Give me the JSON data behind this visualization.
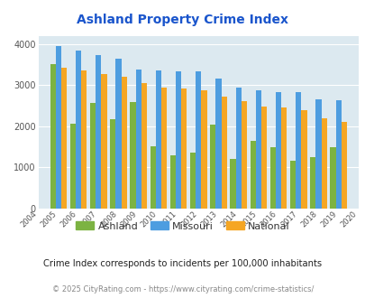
{
  "title": "Ashland Property Crime Index",
  "years": [
    2004,
    2005,
    2006,
    2007,
    2008,
    2009,
    2010,
    2011,
    2012,
    2013,
    2014,
    2015,
    2016,
    2017,
    2018,
    2019,
    2020
  ],
  "ashland": [
    null,
    3520,
    2070,
    2560,
    2180,
    2590,
    1520,
    1300,
    1350,
    2040,
    1200,
    1650,
    1500,
    1160,
    1260,
    1500,
    null
  ],
  "missouri": [
    null,
    3960,
    3840,
    3730,
    3650,
    3390,
    3360,
    3340,
    3340,
    3150,
    2930,
    2870,
    2820,
    2840,
    2650,
    2640,
    null
  ],
  "national": [
    null,
    3430,
    3360,
    3270,
    3200,
    3040,
    2950,
    2920,
    2870,
    2730,
    2610,
    2490,
    2450,
    2390,
    2190,
    2100,
    null
  ],
  "colors": {
    "ashland": "#7cb342",
    "missouri": "#4d9de0",
    "national": "#f5a623"
  },
  "ylim": [
    0,
    4200
  ],
  "yticks": [
    0,
    1000,
    2000,
    3000,
    4000
  ],
  "plot_bg": "#dce9f0",
  "subtitle": "Crime Index corresponds to incidents per 100,000 inhabitants",
  "footer": "© 2025 CityRating.com - https://www.cityrating.com/crime-statistics/",
  "title_color": "#1a55cc",
  "subtitle_color": "#222222",
  "footer_color": "#888888",
  "legend_labels": [
    "Ashland",
    "Missouri",
    "National"
  ],
  "all_years": [
    2004,
    2005,
    2006,
    2007,
    2008,
    2009,
    2010,
    2011,
    2012,
    2013,
    2014,
    2015,
    2016,
    2017,
    2018,
    2019,
    2020
  ]
}
